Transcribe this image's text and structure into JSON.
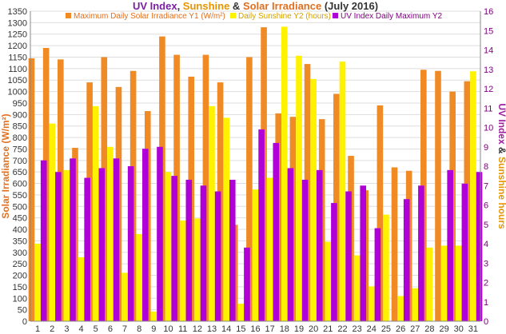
{
  "chart_data": {
    "type": "bar",
    "title_parts": [
      {
        "text": "UV Index",
        "color": "#7B1FA2"
      },
      {
        "text": ", ",
        "color": "#333333"
      },
      {
        "text": "Sunshine",
        "color": "#E69500"
      },
      {
        "text": " & ",
        "color": "#333333"
      },
      {
        "text": "Solar Irradiance",
        "color": "#E07020"
      },
      {
        "text": " (July 2016)",
        "color": "#333333"
      }
    ],
    "ylabel_left": "Solar Irradiance (W/m²)",
    "ylabel_right_parts": [
      {
        "text": "UV Index",
        "color": "#A020A0"
      },
      {
        "text": " & ",
        "color": "#333333"
      },
      {
        "text": "Sunshine hours",
        "color": "#E69500"
      }
    ],
    "ylim_left": [
      0,
      1350
    ],
    "ylim_right": [
      0,
      16
    ],
    "left_ticks": [
      0,
      50,
      100,
      150,
      200,
      250,
      300,
      350,
      400,
      450,
      500,
      550,
      600,
      650,
      700,
      750,
      800,
      850,
      900,
      950,
      1000,
      1050,
      1100,
      1150,
      1200,
      1250,
      1300,
      1350
    ],
    "right_ticks": [
      0,
      1,
      2,
      3,
      4,
      5,
      6,
      7,
      8,
      9,
      10,
      11,
      12,
      13,
      14,
      15,
      16
    ],
    "categories": [
      "1",
      "2",
      "3",
      "4",
      "5",
      "6",
      "7",
      "8",
      "9",
      "10",
      "11",
      "12",
      "13",
      "14",
      "15",
      "16",
      "17",
      "18",
      "19",
      "20",
      "21",
      "22",
      "23",
      "24",
      "25",
      "26",
      "27",
      "28",
      "29",
      "30",
      "31"
    ],
    "legend_position": "top",
    "series": [
      {
        "name": "Maximum Daily Solar Irradiance Y1 (W/m²)",
        "axis": "left",
        "color": "#F08A24",
        "values": [
          1145,
          1190,
          1140,
          755,
          1040,
          1150,
          1020,
          1090,
          915,
          1240,
          1160,
          1065,
          1160,
          1040,
          420,
          1150,
          1280,
          905,
          890,
          1120,
          880,
          990,
          720,
          570,
          940,
          670,
          655,
          1095,
          1090,
          1000,
          1045
        ]
      },
      {
        "name": "Daily Sunshine Y2 (hours)",
        "axis": "right",
        "color": "#FFF200",
        "values": [
          4.0,
          10.2,
          7.8,
          3.3,
          11.1,
          9.0,
          2.5,
          4.5,
          0.5,
          7.7,
          5.2,
          5.3,
          11.1,
          10.5,
          0.9,
          6.8,
          7.4,
          15.2,
          13.7,
          12.5,
          4.1,
          13.4,
          3.4,
          1.8,
          5.5,
          1.3,
          1.7,
          3.8,
          3.9,
          3.9,
          12.9
        ]
      },
      {
        "name": "UV Index Daily Maximum Y2",
        "axis": "right",
        "color": "#B000D8",
        "values": [
          8.3,
          7.7,
          8.4,
          7.4,
          7.9,
          8.4,
          8.0,
          8.9,
          9.0,
          7.5,
          7.3,
          7.0,
          6.7,
          7.3,
          3.8,
          9.9,
          9.2,
          7.9,
          7.3,
          7.8,
          6.1,
          6.7,
          7.0,
          4.8,
          0,
          6.3,
          7.0,
          0,
          7.8,
          7.1,
          7.7
        ]
      }
    ]
  }
}
